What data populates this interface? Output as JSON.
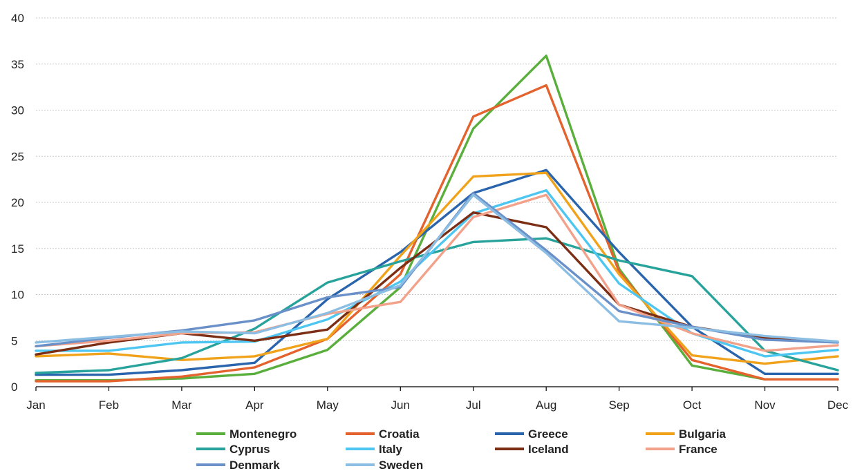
{
  "chart_data": {
    "type": "line",
    "title": "",
    "xlabel": "",
    "ylabel": "",
    "categories": [
      "Jan",
      "Feb",
      "Mar",
      "Apr",
      "May",
      "Jun",
      "Jul",
      "Aug",
      "Sep",
      "Oct",
      "Nov",
      "Dec"
    ],
    "ylim": [
      0,
      40
    ],
    "yticks": [
      0,
      5,
      10,
      15,
      20,
      25,
      30,
      35,
      40
    ],
    "grid": true,
    "legend_position": "bottom",
    "series": [
      {
        "name": "Montenegro",
        "color": "#5aaf3c",
        "values": [
          0.7,
          0.7,
          0.9,
          1.4,
          4.0,
          10.8,
          28.0,
          35.9,
          12.8,
          2.3,
          0.8,
          0.8
        ]
      },
      {
        "name": "Croatia",
        "color": "#e4622d",
        "values": [
          0.6,
          0.6,
          1.1,
          2.1,
          5.2,
          12.2,
          29.3,
          32.7,
          12.5,
          2.9,
          0.8,
          0.8
        ]
      },
      {
        "name": "Greece",
        "color": "#2a64ad",
        "values": [
          1.3,
          1.3,
          1.8,
          2.6,
          9.5,
          14.6,
          21.0,
          23.5,
          14.6,
          6.5,
          1.4,
          1.4
        ]
      },
      {
        "name": "Bulgaria",
        "color": "#f0a21b",
        "values": [
          3.3,
          3.6,
          2.9,
          3.3,
          5.2,
          14.2,
          22.8,
          23.2,
          12.2,
          3.4,
          2.5,
          3.3
        ]
      },
      {
        "name": "Cyprus",
        "color": "#27a39b",
        "values": [
          1.5,
          1.8,
          3.1,
          6.3,
          11.3,
          13.6,
          15.7,
          16.1,
          13.7,
          12.0,
          3.9,
          1.8
        ]
      },
      {
        "name": "Italy",
        "color": "#4dc7f2",
        "values": [
          3.9,
          3.9,
          4.8,
          4.9,
          7.3,
          11.4,
          18.8,
          21.3,
          11.2,
          5.8,
          3.3,
          4.0
        ]
      },
      {
        "name": "Iceland",
        "color": "#7b2e14",
        "values": [
          3.5,
          4.8,
          5.8,
          5.0,
          6.2,
          12.9,
          18.9,
          17.3,
          8.9,
          6.5,
          5.3,
          4.8
        ]
      },
      {
        "name": "France",
        "color": "#f2a18a",
        "values": [
          4.4,
          5.0,
          5.8,
          5.9,
          7.9,
          9.2,
          18.4,
          20.8,
          8.9,
          5.8,
          3.9,
          4.5
        ]
      },
      {
        "name": "Denmark",
        "color": "#6990c8",
        "values": [
          4.4,
          5.3,
          6.1,
          7.2,
          9.7,
          10.8,
          21.0,
          14.8,
          8.2,
          6.5,
          5.1,
          4.8
        ]
      },
      {
        "name": "Sweden",
        "color": "#8cbde2",
        "values": [
          4.8,
          5.4,
          6.0,
          5.8,
          8.0,
          11.0,
          20.8,
          14.5,
          7.1,
          6.4,
          5.5,
          4.9
        ]
      }
    ]
  }
}
